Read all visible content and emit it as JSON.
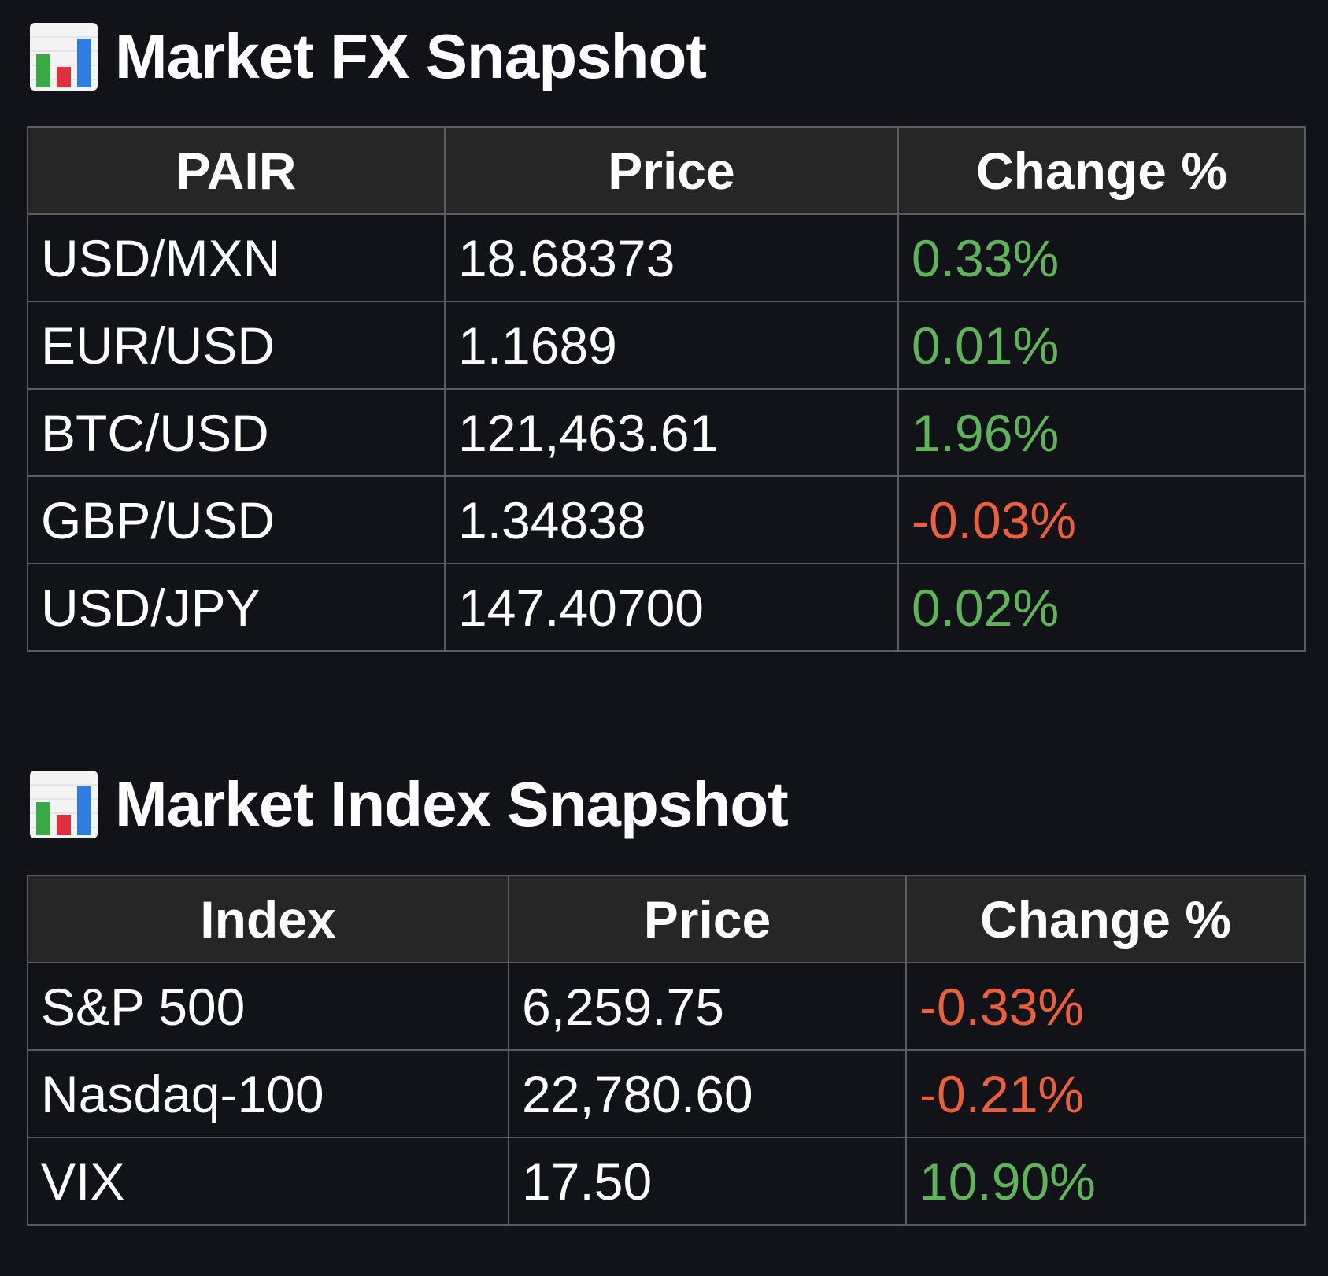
{
  "colors": {
    "background": "#121318",
    "header_bg": "#262626",
    "border": "#5a5c62",
    "positive": "#5fb45a",
    "negative": "#ec5f3c"
  },
  "fx": {
    "icon": "bar-chart-icon",
    "title": "Market FX Snapshot",
    "headers": [
      "PAIR",
      "Price",
      "Change %"
    ],
    "rows": [
      {
        "pair": "USD/MXN",
        "price": "18.68373",
        "change": "0.33%",
        "direction": "up"
      },
      {
        "pair": "EUR/USD",
        "price": "1.1689",
        "change": "0.01%",
        "direction": "up"
      },
      {
        "pair": "BTC/USD",
        "price": "121,463.61",
        "change": "1.96%",
        "direction": "up"
      },
      {
        "pair": "GBP/USD",
        "price": "1.34838",
        "change": "-0.03%",
        "direction": "down"
      },
      {
        "pair": "USD/JPY",
        "price": "147.40700",
        "change": "0.02%",
        "direction": "up"
      }
    ]
  },
  "index": {
    "icon": "bar-chart-icon",
    "title": "Market Index Snapshot",
    "headers": [
      "Index",
      "Price",
      "Change %"
    ],
    "rows": [
      {
        "name": "S&P 500",
        "price": "6,259.75",
        "change": "-0.33%",
        "direction": "down"
      },
      {
        "name": "Nasdaq-100",
        "price": "22,780.60",
        "change": "-0.21%",
        "direction": "down"
      },
      {
        "name": "VIX",
        "price": "17.50",
        "change": "10.90%",
        "direction": "up"
      }
    ]
  }
}
